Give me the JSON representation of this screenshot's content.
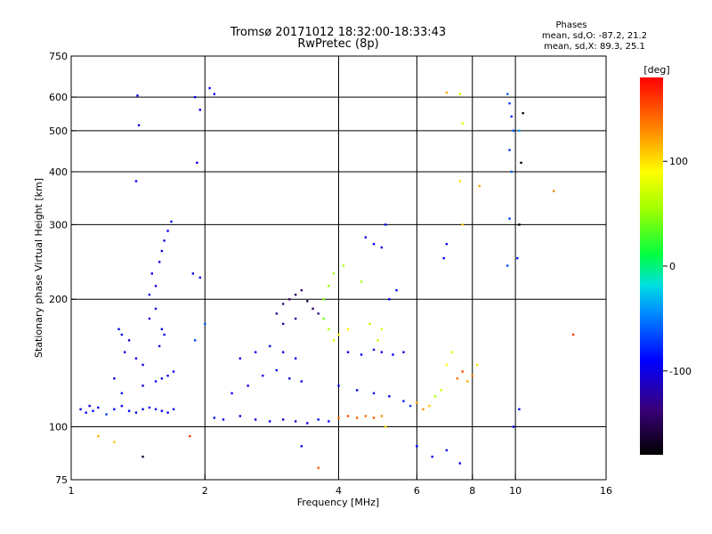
{
  "chart_data": {
    "type": "scatter",
    "title": "Tromsø 20171012 18:32:00-18:33:43",
    "subtitle": "RwPretec (8p)",
    "xlabel": "Frequency [MHz]",
    "ylabel": "Stationary phase Virtual Height [km]",
    "x_scale": "log",
    "y_scale": "log",
    "xlim": [
      1,
      16
    ],
    "ylim": [
      75,
      750
    ],
    "x_ticks": [
      1,
      2,
      4,
      6,
      8,
      10,
      16
    ],
    "x_tick_labels": [
      "1",
      "2",
      "4",
      "6",
      "8",
      "10",
      "16"
    ],
    "y_ticks": [
      75,
      100,
      200,
      300,
      400,
      500,
      600,
      750
    ],
    "y_tick_labels": [
      "75",
      "100",
      "200",
      "300",
      "400",
      "500",
      "600",
      "750"
    ],
    "grid_x": [
      2,
      4,
      6,
      8,
      10
    ],
    "grid_y": [
      100,
      200,
      300,
      400,
      500,
      600
    ],
    "phases_title": "Phases",
    "phases_o": "mean, sd,O: -87.2, 21.2",
    "phases_x": "mean, sd,X:  89.3, 25.1",
    "colorbar": {
      "label": "[deg]",
      "range": [
        -180,
        180
      ],
      "ticks": [
        100,
        0,
        -100
      ],
      "tick_labels": [
        "100",
        "0",
        "-100"
      ]
    },
    "series": [
      {
        "name": "",
        "color_by": "phase",
        "points": [
          [
            1.05,
            110,
            -95
          ],
          [
            1.08,
            108,
            -90
          ],
          [
            1.1,
            112,
            -100
          ],
          [
            1.12,
            109,
            -85
          ],
          [
            1.15,
            111,
            -92
          ],
          [
            1.2,
            107,
            -70
          ],
          [
            1.25,
            110,
            -95
          ],
          [
            1.3,
            112,
            -98
          ],
          [
            1.35,
            109,
            -90
          ],
          [
            1.4,
            108,
            -96
          ],
          [
            1.45,
            110,
            -94
          ],
          [
            1.5,
            111,
            -88
          ],
          [
            1.55,
            110,
            -99
          ],
          [
            1.6,
            109,
            -92
          ],
          [
            1.65,
            108,
            -95
          ],
          [
            1.7,
            110,
            -90
          ],
          [
            1.3,
            165,
            -100
          ],
          [
            1.35,
            160,
            -105
          ],
          [
            1.28,
            170,
            -95
          ],
          [
            1.32,
            150,
            -98
          ],
          [
            1.4,
            145,
            -95
          ],
          [
            1.45,
            140,
            -100
          ],
          [
            1.5,
            205,
            -96
          ],
          [
            1.55,
            215,
            -100
          ],
          [
            1.52,
            230,
            -95
          ],
          [
            1.58,
            245,
            -100
          ],
          [
            1.6,
            260,
            -98
          ],
          [
            1.62,
            275,
            -96
          ],
          [
            1.65,
            290,
            -94
          ],
          [
            1.68,
            305,
            -92
          ],
          [
            1.55,
            190,
            -100
          ],
          [
            1.5,
            180,
            -102
          ],
          [
            1.6,
            170,
            -95
          ],
          [
            1.58,
            155,
            -100
          ],
          [
            1.62,
            165,
            -98
          ],
          [
            1.45,
            125,
            -100
          ],
          [
            1.55,
            128,
            -95
          ],
          [
            1.6,
            130,
            -98
          ],
          [
            1.65,
            132,
            -100
          ],
          [
            1.7,
            135,
            -96
          ],
          [
            1.4,
            380,
            -90
          ],
          [
            1.41,
            605,
            -95
          ],
          [
            1.42,
            515,
            -100
          ],
          [
            1.3,
            120,
            -95
          ],
          [
            1.25,
            130,
            -100
          ],
          [
            1.9,
            600,
            -95
          ],
          [
            1.92,
            420,
            -100
          ],
          [
            1.95,
            560,
            -92
          ],
          [
            2.05,
            630,
            -95
          ],
          [
            2.1,
            610,
            -98
          ],
          [
            1.88,
            230,
            -100
          ],
          [
            1.95,
            225,
            -95
          ],
          [
            2.0,
            175,
            -60
          ],
          [
            1.9,
            160,
            -70
          ],
          [
            2.1,
            105,
            -95
          ],
          [
            2.2,
            104,
            -100
          ],
          [
            2.4,
            106,
            -95
          ],
          [
            2.6,
            104,
            -100
          ],
          [
            2.8,
            103,
            -98
          ],
          [
            3.0,
            104,
            -110
          ],
          [
            3.2,
            103,
            -110
          ],
          [
            3.4,
            102,
            -100
          ],
          [
            3.6,
            104,
            -95
          ],
          [
            3.8,
            103,
            -90
          ],
          [
            2.3,
            120,
            -95
          ],
          [
            2.5,
            125,
            -98
          ],
          [
            2.7,
            132,
            -100
          ],
          [
            2.9,
            136,
            -95
          ],
          [
            3.1,
            130,
            -100
          ],
          [
            3.3,
            128,
            -98
          ],
          [
            2.4,
            145,
            -100
          ],
          [
            2.6,
            150,
            -95
          ],
          [
            2.8,
            155,
            -98
          ],
          [
            3.0,
            150,
            -100
          ],
          [
            3.2,
            145,
            -96
          ],
          [
            2.9,
            185,
            -130
          ],
          [
            3.0,
            195,
            -135
          ],
          [
            3.1,
            200,
            -140
          ],
          [
            3.2,
            205,
            -145
          ],
          [
            3.3,
            210,
            -140
          ],
          [
            3.4,
            198,
            -150
          ],
          [
            3.5,
            190,
            -140
          ],
          [
            3.6,
            185,
            -130
          ],
          [
            3.0,
            175,
            -125
          ],
          [
            3.2,
            180,
            -130
          ],
          [
            3.7,
            180,
            40
          ],
          [
            3.8,
            170,
            60
          ],
          [
            3.9,
            160,
            80
          ],
          [
            4.0,
            165,
            90
          ],
          [
            4.2,
            170,
            95
          ],
          [
            3.8,
            215,
            50
          ],
          [
            3.9,
            230,
            55
          ],
          [
            4.1,
            240,
            60
          ],
          [
            3.7,
            200,
            45
          ],
          [
            4.5,
            220,
            60
          ],
          [
            4.2,
            150,
            -95
          ],
          [
            4.5,
            148,
            -90
          ],
          [
            4.8,
            152,
            -98
          ],
          [
            5.0,
            150,
            -95
          ],
          [
            5.3,
            148,
            -92
          ],
          [
            5.6,
            150,
            -100
          ],
          [
            4.0,
            125,
            -95
          ],
          [
            4.4,
            122,
            -98
          ],
          [
            4.8,
            120,
            -100
          ],
          [
            5.2,
            118,
            -95
          ],
          [
            4.0,
            105,
            140
          ],
          [
            4.2,
            106,
            150
          ],
          [
            4.4,
            105,
            145
          ],
          [
            4.6,
            106,
            140
          ],
          [
            4.8,
            105,
            150
          ],
          [
            5.0,
            106,
            130
          ],
          [
            4.6,
            280,
            -100
          ],
          [
            4.8,
            270,
            -96
          ],
          [
            5.0,
            265,
            -98
          ],
          [
            5.1,
            300,
            -95
          ],
          [
            4.9,
            160,
            70
          ],
          [
            5.0,
            170,
            75
          ],
          [
            4.7,
            175,
            65
          ],
          [
            5.2,
            200,
            -90
          ],
          [
            5.4,
            210,
            -95
          ],
          [
            5.6,
            115,
            -80
          ],
          [
            5.8,
            112,
            -70
          ],
          [
            6.0,
            114,
            120
          ],
          [
            6.2,
            110,
            130
          ],
          [
            6.4,
            112,
            110
          ],
          [
            6.6,
            118,
            60
          ],
          [
            6.8,
            122,
            70
          ],
          [
            7.0,
            140,
            90
          ],
          [
            7.2,
            150,
            80
          ],
          [
            7.4,
            130,
            140
          ],
          [
            7.6,
            135,
            150
          ],
          [
            7.8,
            128,
            120
          ],
          [
            8.0,
            132,
            130
          ],
          [
            8.2,
            140,
            100
          ],
          [
            6.9,
            250,
            -95
          ],
          [
            7.0,
            270,
            -100
          ],
          [
            6.0,
            90,
            -90
          ],
          [
            6.5,
            85,
            -95
          ],
          [
            7.0,
            88,
            -100
          ],
          [
            7.5,
            82,
            -98
          ],
          [
            7.0,
            615,
            120
          ],
          [
            7.5,
            610,
            70
          ],
          [
            7.6,
            520,
            80
          ],
          [
            7.5,
            380,
            100
          ],
          [
            7.6,
            300,
            110
          ],
          [
            9.6,
            610,
            -60
          ],
          [
            9.7,
            580,
            -70
          ],
          [
            9.8,
            540,
            -80
          ],
          [
            9.9,
            500,
            -65
          ],
          [
            9.7,
            450,
            -75
          ],
          [
            9.8,
            400,
            -60
          ],
          [
            9.7,
            310,
            -70
          ],
          [
            9.6,
            240,
            -65
          ],
          [
            9.9,
            100,
            -90
          ],
          [
            10.2,
            500,
            -40
          ],
          [
            10.4,
            550,
            -180
          ],
          [
            10.3,
            420,
            -180
          ],
          [
            10.2,
            300,
            -180
          ],
          [
            10.1,
            250,
            -80
          ],
          [
            10.2,
            110,
            -90
          ],
          [
            12.2,
            360,
            130
          ],
          [
            13.5,
            165,
            160
          ],
          [
            1.15,
            95,
            120
          ],
          [
            1.25,
            92,
            110
          ],
          [
            1.45,
            85,
            -160
          ],
          [
            1.85,
            95,
            160
          ],
          [
            3.3,
            90,
            -95
          ],
          [
            3.6,
            80,
            150
          ],
          [
            5.1,
            100,
            100
          ],
          [
            8.3,
            370,
            120
          ]
        ]
      }
    ]
  }
}
